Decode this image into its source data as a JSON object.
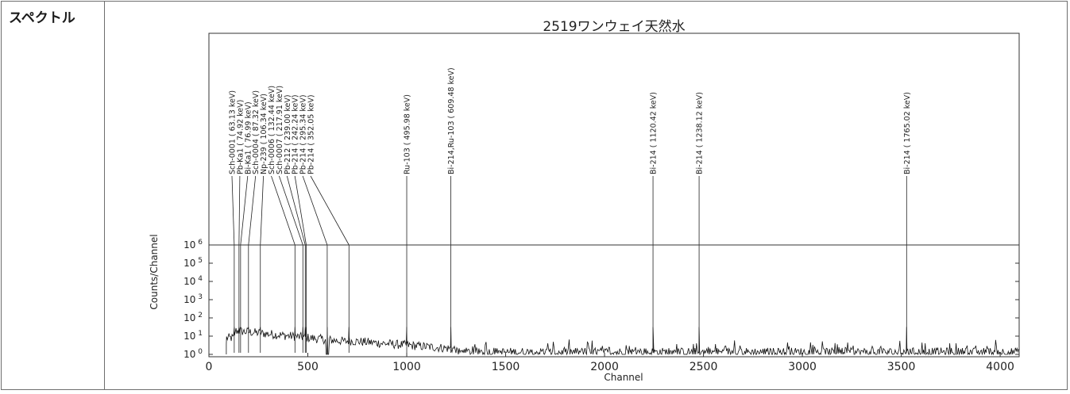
{
  "row_label": "スペクトル",
  "chart_data": {
    "type": "line",
    "title": "2519ワンウェイ天然水",
    "xlabel": "Channel",
    "ylabel": "Counts/Channel",
    "xlim": [
      0,
      4096
    ],
    "x_ticks": [
      0,
      500,
      1000,
      1500,
      2000,
      2500,
      3000,
      3500,
      4000
    ],
    "y_scale": "log",
    "y_ticks": [
      {
        "base": "10",
        "exp": "0"
      },
      {
        "base": "10",
        "exp": "1"
      },
      {
        "base": "10",
        "exp": "2"
      },
      {
        "base": "10",
        "exp": "3"
      },
      {
        "base": "10",
        "exp": "4"
      },
      {
        "base": "10",
        "exp": "5"
      },
      {
        "base": "10",
        "exp": "6"
      }
    ],
    "grid": false,
    "peaks": [
      {
        "label": "Sch-0001 ( 63.13 keV)",
        "channel": 128
      },
      {
        "label": "Pb-Ka1 ( 74.92 keV)",
        "channel": 152
      },
      {
        "label": "Bi-Ka1 ( 76.99 keV)",
        "channel": 160
      },
      {
        "label": "Sch-0004 ( 87.32 keV)",
        "channel": 200
      },
      {
        "label": "Np-239 ( 106.34 keV)",
        "channel": 260
      },
      {
        "label": "Sch-0006 ( 132.44 keV)",
        "channel": 435
      },
      {
        "label": "Sch-0007 ( 217.91 keV)",
        "channel": 475
      },
      {
        "label": "Pb-212 ( 239.00 keV)",
        "channel": 487
      },
      {
        "label": "Pb-214 ( 242.24 keV)",
        "channel": 492
      },
      {
        "label": "Pb-214 ( 295.34 keV)",
        "channel": 598
      },
      {
        "label": "Pb-214 ( 352.05 keV)",
        "channel": 708
      },
      {
        "label": "Ru-103 ( 495.98 keV)",
        "channel": 1000
      },
      {
        "label": "Bi-214,Ru-103 ( 609.48 keV)",
        "channel": 1223
      },
      {
        "label": "Bi-214 ( 1120.42 keV)",
        "channel": 2245
      },
      {
        "label": "Bi-214 ( 1238.12 keV)",
        "channel": 2478
      },
      {
        "label": "Bi-214 ( 1765.02 keV)",
        "channel": 3527
      }
    ]
  }
}
